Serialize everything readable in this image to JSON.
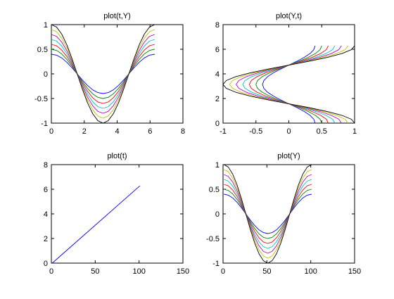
{
  "figure": {
    "background": "#ffffff"
  },
  "colors": [
    "#0000ff",
    "#008000",
    "#ff0000",
    "#00bfbf",
    "#bf00bf",
    "#bfbf00",
    "#000000"
  ],
  "chart_data": [
    {
      "type": "line",
      "title": "plot(t,Y)",
      "xlabel": "",
      "ylabel": "",
      "xlim": [
        0,
        8
      ],
      "ylim": [
        -1,
        1
      ],
      "xticks": [
        0,
        2,
        4,
        6,
        8
      ],
      "xtick_labels": [
        "0",
        "2",
        "4",
        "6",
        "8"
      ],
      "yticks": [
        -1,
        -0.5,
        0,
        0.5,
        1
      ],
      "ytick_labels": [
        "-1",
        "-0.5",
        "0",
        "0.5",
        "1"
      ],
      "grid": false,
      "x": [
        0,
        0.314,
        0.628,
        0.942,
        1.257,
        1.571,
        1.885,
        2.199,
        2.513,
        2.827,
        3.142,
        3.456,
        3.77,
        4.084,
        4.398,
        4.712,
        5.027,
        5.341,
        5.655,
        5.969,
        6.283
      ],
      "series": [
        {
          "values": [
            0.4,
            0.38,
            0.324,
            0.235,
            0.124,
            0.0,
            -0.124,
            -0.235,
            -0.324,
            -0.38,
            -0.4,
            -0.38,
            -0.324,
            -0.235,
            -0.124,
            0.0,
            0.124,
            0.235,
            0.324,
            0.38,
            0.4
          ]
        },
        {
          "values": [
            0.5,
            0.476,
            0.405,
            0.294,
            0.155,
            0.0,
            -0.155,
            -0.294,
            -0.405,
            -0.476,
            -0.5,
            -0.476,
            -0.405,
            -0.294,
            -0.155,
            0.0,
            0.155,
            0.294,
            0.405,
            0.476,
            0.5
          ]
        },
        {
          "values": [
            0.6,
            0.571,
            0.485,
            0.353,
            0.185,
            0.0,
            -0.185,
            -0.353,
            -0.485,
            -0.571,
            -0.6,
            -0.571,
            -0.485,
            -0.353,
            -0.185,
            0.0,
            0.185,
            0.353,
            0.485,
            0.571,
            0.6
          ]
        },
        {
          "values": [
            0.7,
            0.666,
            0.566,
            0.411,
            0.216,
            0.0,
            -0.216,
            -0.411,
            -0.566,
            -0.666,
            -0.7,
            -0.666,
            -0.566,
            -0.411,
            -0.216,
            0.0,
            0.216,
            0.411,
            0.566,
            0.666,
            0.7
          ]
        },
        {
          "values": [
            0.8,
            0.761,
            0.647,
            0.47,
            0.247,
            0.0,
            -0.247,
            -0.47,
            -0.647,
            -0.761,
            -0.8,
            -0.761,
            -0.647,
            -0.47,
            -0.247,
            0.0,
            0.247,
            0.47,
            0.647,
            0.761,
            0.8
          ]
        },
        {
          "values": [
            0.9,
            0.856,
            0.728,
            0.529,
            0.278,
            0.0,
            -0.278,
            -0.529,
            -0.728,
            -0.856,
            -0.9,
            -0.856,
            -0.728,
            -0.529,
            -0.278,
            0.0,
            0.278,
            0.529,
            0.728,
            0.856,
            0.9
          ]
        },
        {
          "values": [
            1.0,
            0.951,
            0.809,
            0.588,
            0.309,
            0.0,
            -0.309,
            -0.588,
            -0.809,
            -0.951,
            -1.0,
            -0.951,
            -0.809,
            -0.588,
            -0.309,
            0.0,
            0.309,
            0.588,
            0.809,
            0.951,
            1.0
          ]
        }
      ]
    },
    {
      "type": "line",
      "title": "plot(Y,t)",
      "xlabel": "",
      "ylabel": "",
      "xlim": [
        -1,
        1
      ],
      "ylim": [
        0,
        8
      ],
      "xticks": [
        -1,
        -0.5,
        0,
        0.5,
        1
      ],
      "xtick_labels": [
        "-1",
        "-0.5",
        "0",
        "0.5",
        "1"
      ],
      "yticks": [
        0,
        2,
        4,
        6,
        8
      ],
      "ytick_labels": [
        "0",
        "2",
        "4",
        "6",
        "8"
      ],
      "grid": false,
      "y": [
        0,
        0.314,
        0.628,
        0.942,
        1.257,
        1.571,
        1.885,
        2.199,
        2.513,
        2.827,
        3.142,
        3.456,
        3.77,
        4.084,
        4.398,
        4.712,
        5.027,
        5.341,
        5.655,
        5.969,
        6.283
      ],
      "series": [
        {
          "values": [
            0.4,
            0.38,
            0.324,
            0.235,
            0.124,
            0.0,
            -0.124,
            -0.235,
            -0.324,
            -0.38,
            -0.4,
            -0.38,
            -0.324,
            -0.235,
            -0.124,
            0.0,
            0.124,
            0.235,
            0.324,
            0.38,
            0.4
          ]
        },
        {
          "values": [
            0.5,
            0.476,
            0.405,
            0.294,
            0.155,
            0.0,
            -0.155,
            -0.294,
            -0.405,
            -0.476,
            -0.5,
            -0.476,
            -0.405,
            -0.294,
            -0.155,
            0.0,
            0.155,
            0.294,
            0.405,
            0.476,
            0.5
          ]
        },
        {
          "values": [
            0.6,
            0.571,
            0.485,
            0.353,
            0.185,
            0.0,
            -0.185,
            -0.353,
            -0.485,
            -0.571,
            -0.6,
            -0.571,
            -0.485,
            -0.353,
            -0.185,
            0.0,
            0.185,
            0.353,
            0.485,
            0.571,
            0.6
          ]
        },
        {
          "values": [
            0.7,
            0.666,
            0.566,
            0.411,
            0.216,
            0.0,
            -0.216,
            -0.411,
            -0.566,
            -0.666,
            -0.7,
            -0.666,
            -0.566,
            -0.411,
            -0.216,
            0.0,
            0.216,
            0.411,
            0.566,
            0.666,
            0.7
          ]
        },
        {
          "values": [
            0.8,
            0.761,
            0.647,
            0.47,
            0.247,
            0.0,
            -0.247,
            -0.47,
            -0.647,
            -0.761,
            -0.8,
            -0.761,
            -0.647,
            -0.47,
            -0.247,
            0.0,
            0.247,
            0.47,
            0.647,
            0.761,
            0.8
          ]
        },
        {
          "values": [
            0.9,
            0.856,
            0.728,
            0.529,
            0.278,
            0.0,
            -0.278,
            -0.529,
            -0.728,
            -0.856,
            -0.9,
            -0.856,
            -0.728,
            -0.529,
            -0.278,
            0.0,
            0.278,
            0.529,
            0.728,
            0.856,
            0.9
          ]
        },
        {
          "values": [
            1.0,
            0.951,
            0.809,
            0.588,
            0.309,
            0.0,
            -0.309,
            -0.588,
            -0.809,
            -0.951,
            -1.0,
            -0.951,
            -0.809,
            -0.588,
            -0.309,
            0.0,
            0.309,
            0.588,
            0.809,
            0.951,
            1.0
          ]
        }
      ]
    },
    {
      "type": "line",
      "title": "plot(t)",
      "xlabel": "",
      "ylabel": "",
      "xlim": [
        0,
        150
      ],
      "ylim": [
        0,
        8
      ],
      "xticks": [
        0,
        50,
        100,
        150
      ],
      "xtick_labels": [
        "0",
        "50",
        "100",
        "150"
      ],
      "yticks": [
        0,
        2,
        4,
        6,
        8
      ],
      "ytick_labels": [
        "0",
        "2",
        "4",
        "6",
        "8"
      ],
      "grid": false,
      "x": [
        1,
        101
      ],
      "series": [
        {
          "values": [
            0,
            6.283
          ]
        }
      ]
    },
    {
      "type": "line",
      "title": "plot(Y)",
      "xlabel": "",
      "ylabel": "",
      "xlim": [
        0,
        150
      ],
      "ylim": [
        -1,
        1
      ],
      "xticks": [
        0,
        50,
        100,
        150
      ],
      "xtick_labels": [
        "0",
        "50",
        "100",
        "150"
      ],
      "yticks": [
        -1,
        -0.5,
        0,
        0.5,
        1
      ],
      "ytick_labels": [
        "-1",
        "-0.5",
        "0",
        "0.5",
        "1"
      ],
      "grid": false,
      "x": [
        1,
        6,
        11,
        16,
        21,
        26,
        31,
        36,
        41,
        46,
        51,
        56,
        61,
        66,
        71,
        76,
        81,
        86,
        91,
        96,
        101
      ],
      "series": [
        {
          "values": [
            0.4,
            0.38,
            0.324,
            0.235,
            0.124,
            0.0,
            -0.124,
            -0.235,
            -0.324,
            -0.38,
            -0.4,
            -0.38,
            -0.324,
            -0.235,
            -0.124,
            0.0,
            0.124,
            0.235,
            0.324,
            0.38,
            0.4
          ]
        },
        {
          "values": [
            0.5,
            0.476,
            0.405,
            0.294,
            0.155,
            0.0,
            -0.155,
            -0.294,
            -0.405,
            -0.476,
            -0.5,
            -0.476,
            -0.405,
            -0.294,
            -0.155,
            0.0,
            0.155,
            0.294,
            0.405,
            0.476,
            0.5
          ]
        },
        {
          "values": [
            0.6,
            0.571,
            0.485,
            0.353,
            0.185,
            0.0,
            -0.185,
            -0.353,
            -0.485,
            -0.571,
            -0.6,
            -0.571,
            -0.485,
            -0.353,
            -0.185,
            0.0,
            0.185,
            0.353,
            0.485,
            0.571,
            0.6
          ]
        },
        {
          "values": [
            0.7,
            0.666,
            0.566,
            0.411,
            0.216,
            0.0,
            -0.216,
            -0.411,
            -0.566,
            -0.666,
            -0.7,
            -0.666,
            -0.566,
            -0.411,
            -0.216,
            0.0,
            0.216,
            0.411,
            0.566,
            0.666,
            0.7
          ]
        },
        {
          "values": [
            0.8,
            0.761,
            0.647,
            0.47,
            0.247,
            0.0,
            -0.247,
            -0.47,
            -0.647,
            -0.761,
            -0.8,
            -0.761,
            -0.647,
            -0.47,
            -0.247,
            0.0,
            0.247,
            0.47,
            0.647,
            0.761,
            0.8
          ]
        },
        {
          "values": [
            0.9,
            0.856,
            0.728,
            0.529,
            0.278,
            0.0,
            -0.278,
            -0.529,
            -0.728,
            -0.856,
            -0.9,
            -0.856,
            -0.728,
            -0.529,
            -0.278,
            0.0,
            0.278,
            0.529,
            0.728,
            0.856,
            0.9
          ]
        },
        {
          "values": [
            1.0,
            0.951,
            0.809,
            0.588,
            0.309,
            0.0,
            -0.309,
            -0.588,
            -0.809,
            -0.951,
            -1.0,
            -0.951,
            -0.809,
            -0.588,
            -0.309,
            0.0,
            0.309,
            0.588,
            0.809,
            0.951,
            1.0
          ]
        }
      ]
    }
  ]
}
